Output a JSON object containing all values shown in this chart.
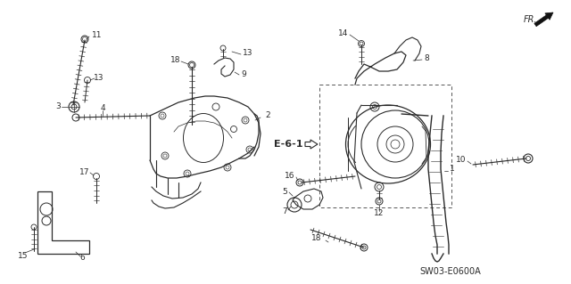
{
  "bg_color": "#ffffff",
  "line_color": "#2a2a2a",
  "fig_width": 6.4,
  "fig_height": 3.19,
  "dpi": 100,
  "watermark": "SW03-E0600A",
  "ref_label": "E-6-1",
  "direction_label": "FR."
}
